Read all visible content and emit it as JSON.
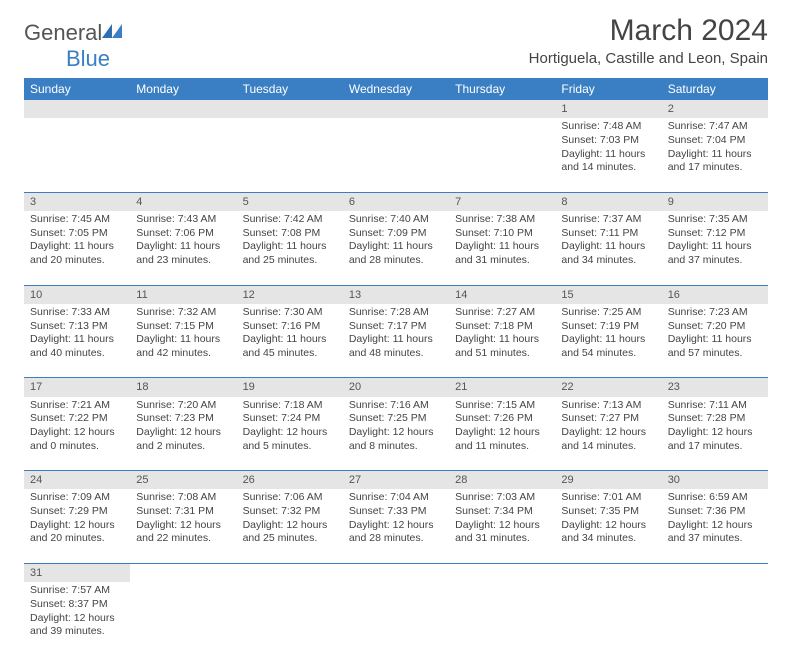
{
  "brand": {
    "name1": "General",
    "name2": "Blue"
  },
  "title": "March 2024",
  "location": "Hortiguela, Castille and Leon, Spain",
  "headers": [
    "Sunday",
    "Monday",
    "Tuesday",
    "Wednesday",
    "Thursday",
    "Friday",
    "Saturday"
  ],
  "colors": {
    "header_bg": "#3a7fc4",
    "gray_bg": "#e5e5e5",
    "text": "#444444"
  },
  "weeks": [
    [
      null,
      null,
      null,
      null,
      null,
      {
        "n": "1",
        "sr": "7:48 AM",
        "ss": "7:03 PM",
        "d": "11 hours and 14 minutes."
      },
      {
        "n": "2",
        "sr": "7:47 AM",
        "ss": "7:04 PM",
        "d": "11 hours and 17 minutes."
      }
    ],
    [
      {
        "n": "3",
        "sr": "7:45 AM",
        "ss": "7:05 PM",
        "d": "11 hours and 20 minutes."
      },
      {
        "n": "4",
        "sr": "7:43 AM",
        "ss": "7:06 PM",
        "d": "11 hours and 23 minutes."
      },
      {
        "n": "5",
        "sr": "7:42 AM",
        "ss": "7:08 PM",
        "d": "11 hours and 25 minutes."
      },
      {
        "n": "6",
        "sr": "7:40 AM",
        "ss": "7:09 PM",
        "d": "11 hours and 28 minutes."
      },
      {
        "n": "7",
        "sr": "7:38 AM",
        "ss": "7:10 PM",
        "d": "11 hours and 31 minutes."
      },
      {
        "n": "8",
        "sr": "7:37 AM",
        "ss": "7:11 PM",
        "d": "11 hours and 34 minutes."
      },
      {
        "n": "9",
        "sr": "7:35 AM",
        "ss": "7:12 PM",
        "d": "11 hours and 37 minutes."
      }
    ],
    [
      {
        "n": "10",
        "sr": "7:33 AM",
        "ss": "7:13 PM",
        "d": "11 hours and 40 minutes."
      },
      {
        "n": "11",
        "sr": "7:32 AM",
        "ss": "7:15 PM",
        "d": "11 hours and 42 minutes."
      },
      {
        "n": "12",
        "sr": "7:30 AM",
        "ss": "7:16 PM",
        "d": "11 hours and 45 minutes."
      },
      {
        "n": "13",
        "sr": "7:28 AM",
        "ss": "7:17 PM",
        "d": "11 hours and 48 minutes."
      },
      {
        "n": "14",
        "sr": "7:27 AM",
        "ss": "7:18 PM",
        "d": "11 hours and 51 minutes."
      },
      {
        "n": "15",
        "sr": "7:25 AM",
        "ss": "7:19 PM",
        "d": "11 hours and 54 minutes."
      },
      {
        "n": "16",
        "sr": "7:23 AM",
        "ss": "7:20 PM",
        "d": "11 hours and 57 minutes."
      }
    ],
    [
      {
        "n": "17",
        "sr": "7:21 AM",
        "ss": "7:22 PM",
        "d": "12 hours and 0 minutes."
      },
      {
        "n": "18",
        "sr": "7:20 AM",
        "ss": "7:23 PM",
        "d": "12 hours and 2 minutes."
      },
      {
        "n": "19",
        "sr": "7:18 AM",
        "ss": "7:24 PM",
        "d": "12 hours and 5 minutes."
      },
      {
        "n": "20",
        "sr": "7:16 AM",
        "ss": "7:25 PM",
        "d": "12 hours and 8 minutes."
      },
      {
        "n": "21",
        "sr": "7:15 AM",
        "ss": "7:26 PM",
        "d": "12 hours and 11 minutes."
      },
      {
        "n": "22",
        "sr": "7:13 AM",
        "ss": "7:27 PM",
        "d": "12 hours and 14 minutes."
      },
      {
        "n": "23",
        "sr": "7:11 AM",
        "ss": "7:28 PM",
        "d": "12 hours and 17 minutes."
      }
    ],
    [
      {
        "n": "24",
        "sr": "7:09 AM",
        "ss": "7:29 PM",
        "d": "12 hours and 20 minutes."
      },
      {
        "n": "25",
        "sr": "7:08 AM",
        "ss": "7:31 PM",
        "d": "12 hours and 22 minutes."
      },
      {
        "n": "26",
        "sr": "7:06 AM",
        "ss": "7:32 PM",
        "d": "12 hours and 25 minutes."
      },
      {
        "n": "27",
        "sr": "7:04 AM",
        "ss": "7:33 PM",
        "d": "12 hours and 28 minutes."
      },
      {
        "n": "28",
        "sr": "7:03 AM",
        "ss": "7:34 PM",
        "d": "12 hours and 31 minutes."
      },
      {
        "n": "29",
        "sr": "7:01 AM",
        "ss": "7:35 PM",
        "d": "12 hours and 34 minutes."
      },
      {
        "n": "30",
        "sr": "6:59 AM",
        "ss": "7:36 PM",
        "d": "12 hours and 37 minutes."
      }
    ],
    [
      {
        "n": "31",
        "sr": "7:57 AM",
        "ss": "8:37 PM",
        "d": "12 hours and 39 minutes."
      },
      null,
      null,
      null,
      null,
      null,
      null
    ]
  ],
  "labels": {
    "sunrise": "Sunrise:",
    "sunset": "Sunset:",
    "daylight": "Daylight:"
  }
}
